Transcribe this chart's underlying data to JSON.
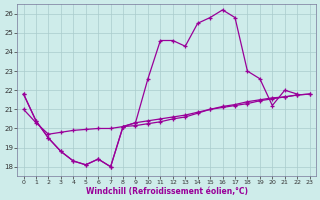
{
  "xlabel": "Windchill (Refroidissement éolien,°C)",
  "background_color": "#ceecea",
  "grid_color": "#aacccc",
  "line_color": "#990099",
  "xlim": [
    -0.5,
    23.5
  ],
  "ylim": [
    17.5,
    26.5
  ],
  "yticks": [
    18,
    19,
    20,
    21,
    22,
    23,
    24,
    25,
    26
  ],
  "xticks": [
    0,
    1,
    2,
    3,
    4,
    5,
    6,
    7,
    8,
    9,
    10,
    11,
    12,
    13,
    14,
    15,
    16,
    17,
    18,
    19,
    20,
    21,
    22,
    23
  ],
  "curve_upper_x": [
    0,
    1,
    2,
    3,
    4,
    5,
    6,
    7,
    8,
    9,
    10,
    11,
    12,
    13,
    14,
    15,
    16,
    17,
    18,
    19,
    20,
    21,
    22
  ],
  "curve_upper_y": [
    21.8,
    20.4,
    19.5,
    18.8,
    18.3,
    18.1,
    18.4,
    18.0,
    20.1,
    20.3,
    22.6,
    24.6,
    24.6,
    24.3,
    25.5,
    25.8,
    26.2,
    25.8,
    23.0,
    22.6,
    21.2,
    22.0,
    21.8
  ],
  "curve_mid_x": [
    0,
    1,
    2,
    3,
    4,
    5,
    6,
    7,
    8,
    9,
    10,
    11,
    12,
    13,
    14,
    15,
    16,
    17,
    18,
    19,
    20,
    21,
    22,
    23
  ],
  "curve_mid_y": [
    21.0,
    20.3,
    19.7,
    19.8,
    19.9,
    19.95,
    20.0,
    20.0,
    20.1,
    20.15,
    20.25,
    20.35,
    20.5,
    20.6,
    20.8,
    21.0,
    21.15,
    21.25,
    21.4,
    21.5,
    21.6,
    21.65,
    21.75,
    21.8
  ],
  "curve_lower_x": [
    0,
    1,
    2,
    3,
    4,
    5,
    6,
    7,
    8,
    9,
    10,
    11,
    12,
    13,
    14,
    15,
    16,
    17,
    18,
    19,
    20,
    21,
    22,
    23
  ],
  "curve_lower_y": [
    21.8,
    20.4,
    19.5,
    18.8,
    18.3,
    18.1,
    18.4,
    18.0,
    20.1,
    20.3,
    20.4,
    20.5,
    20.6,
    20.7,
    20.85,
    21.0,
    21.1,
    21.2,
    21.3,
    21.45,
    21.55,
    21.65,
    21.75,
    21.8
  ]
}
